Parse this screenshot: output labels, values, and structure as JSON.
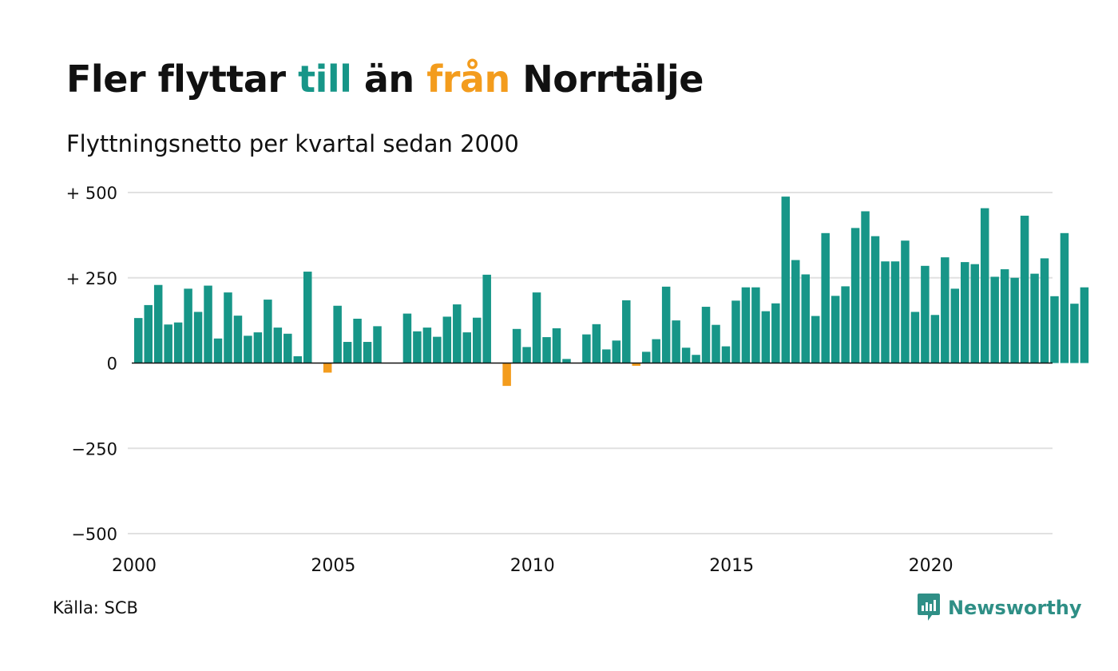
{
  "title": {
    "part1": "Fler flyttar ",
    "part2": "till",
    "part3": " än ",
    "part4": "från",
    "part5": " Norrtälje"
  },
  "subtitle": "Flyttningsnetto per kvartal sedan 2000",
  "source": "Källa: SCB",
  "brand": "Newsworthy",
  "colors": {
    "positive": "#179688",
    "negative": "#f39c1d",
    "grid": "#e1e1e1",
    "axis": "#111111",
    "text": "#111111",
    "brand": "#2f8f86"
  },
  "chart_data": {
    "type": "bar",
    "title": "Fler flyttar till än från Norrtälje",
    "subtitle": "Flyttningsnetto per kvartal sedan 2000",
    "x_start": 2000,
    "periods_per_year": 4,
    "x_ticks": [
      2000,
      2005,
      2010,
      2015,
      2020
    ],
    "y_ticks": [
      {
        "value": 500,
        "label": "+ 500"
      },
      {
        "value": 250,
        "label": "+ 250"
      },
      {
        "value": 0,
        "label": "0"
      },
      {
        "value": -250,
        "label": "−250"
      },
      {
        "value": -500,
        "label": "−500"
      }
    ],
    "ylim": [
      -500,
      500
    ],
    "grid": true,
    "values": [
      132,
      170,
      229,
      113,
      119,
      218,
      150,
      227,
      72,
      207,
      139,
      80,
      90,
      186,
      104,
      86,
      20,
      268,
      0,
      -28,
      168,
      62,
      130,
      62,
      108,
      0,
      0,
      145,
      93,
      104,
      77,
      136,
      172,
      90,
      133,
      259,
      0,
      -67,
      100,
      47,
      207,
      76,
      102,
      12,
      0,
      84,
      114,
      40,
      66,
      184,
      -8,
      33,
      70,
      224,
      125,
      45,
      24,
      165,
      112,
      49,
      183,
      222,
      222,
      152,
      175,
      488,
      302,
      260,
      138,
      381,
      197,
      225,
      396,
      445,
      372,
      298,
      298,
      359,
      150,
      285,
      141,
      310,
      218,
      296,
      290,
      454,
      253,
      275,
      250,
      432,
      262,
      307,
      196,
      381,
      174,
      222
    ]
  }
}
